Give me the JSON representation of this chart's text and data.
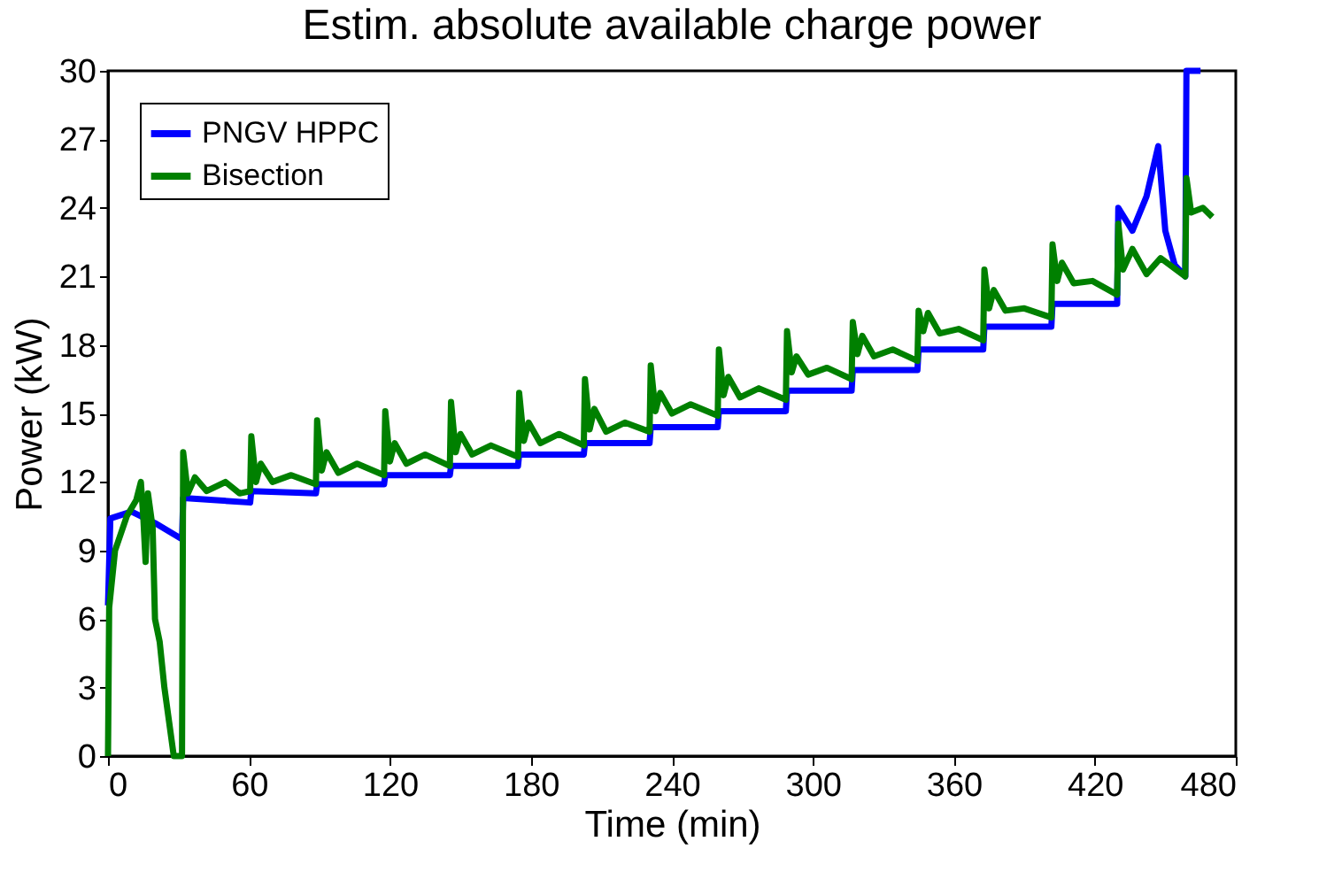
{
  "chart_data": {
    "type": "line",
    "title": "Estim. absolute available charge power",
    "xlabel": "Time (min)",
    "ylabel": "Power (kW)",
    "xlim": [
      0,
      480
    ],
    "xticks": [
      0,
      60,
      120,
      180,
      240,
      300,
      360,
      420,
      480
    ],
    "ylim": [
      0,
      30
    ],
    "yticks": [
      0,
      3,
      6,
      9,
      12,
      15,
      18,
      21,
      24,
      27,
      30
    ],
    "grid": false,
    "legend": "top left",
    "marker": "none",
    "line_style": "solid",
    "series": [
      {
        "name": "PNGV HPPC",
        "color": "#0000ff",
        "x": [
          0,
          1,
          10,
          20,
          31.5,
          32,
          60.5,
          61,
          88.5,
          89,
          117.5,
          118,
          145.5,
          146,
          174.5,
          175,
          202.5,
          203,
          230.5,
          231,
          259.5,
          260,
          288.5,
          289,
          316.5,
          317,
          344.5,
          345,
          372.5,
          373,
          401.5,
          402,
          429.5,
          430,
          436,
          442,
          447,
          450,
          454,
          458.5,
          459,
          465
        ],
        "values": [
          6.6,
          10.4,
          10.7,
          10.2,
          9.5,
          11.3,
          11.1,
          11.6,
          11.5,
          11.9,
          11.9,
          12.3,
          12.3,
          12.7,
          12.7,
          13.2,
          13.2,
          13.7,
          13.7,
          14.4,
          14.4,
          15.1,
          15.1,
          16.0,
          16.0,
          16.9,
          16.9,
          17.8,
          17.8,
          18.8,
          18.8,
          19.8,
          19.8,
          24.0,
          23.0,
          24.5,
          26.7,
          23.0,
          21.5,
          21.0,
          30,
          30
        ]
      },
      {
        "name": "Bisection",
        "color": "#008000",
        "x": [
          0,
          0.5,
          3,
          8,
          12,
          14,
          15,
          16,
          17,
          19,
          20,
          22,
          24,
          26,
          28,
          31.5,
          32,
          34,
          37,
          42,
          50,
          56,
          60.5,
          61,
          63,
          65,
          70,
          78,
          88.5,
          89,
          91,
          93,
          98,
          106,
          117.5,
          118,
          120,
          122,
          127,
          135,
          145.5,
          146,
          148,
          150,
          155,
          163,
          174.5,
          175,
          177,
          179,
          184,
          192,
          202.5,
          203,
          205,
          207,
          212,
          220,
          230.5,
          231,
          233,
          235,
          240,
          248,
          259.5,
          260,
          262,
          264,
          269,
          277,
          288.5,
          289,
          291,
          293,
          298,
          306,
          316.5,
          317,
          319,
          321,
          326,
          334,
          344.5,
          345,
          347,
          349,
          354,
          362,
          372.5,
          373,
          375,
          377,
          382,
          390,
          401.5,
          402,
          404,
          406,
          411,
          419,
          429.5,
          430,
          432,
          436,
          442,
          448,
          458.5,
          459,
          461,
          466,
          470
        ],
        "values": [
          0,
          6.5,
          9,
          10.5,
          11.2,
          12.0,
          10.5,
          8.5,
          11.5,
          10,
          6,
          5,
          3,
          1.5,
          0,
          0,
          13.3,
          11.5,
          12.2,
          11.6,
          12.0,
          11.5,
          11.6,
          14.0,
          12.0,
          12.8,
          12.0,
          12.3,
          11.9,
          14.7,
          12.5,
          13.3,
          12.4,
          12.8,
          12.3,
          15.1,
          12.9,
          13.7,
          12.8,
          13.2,
          12.7,
          15.5,
          13.3,
          14.1,
          13.2,
          13.6,
          13.1,
          15.9,
          13.8,
          14.6,
          13.7,
          14.1,
          13.6,
          16.5,
          14.3,
          15.2,
          14.2,
          14.6,
          14.2,
          17.1,
          15.1,
          15.9,
          15.0,
          15.4,
          14.9,
          17.8,
          15.8,
          16.6,
          15.7,
          16.1,
          15.6,
          18.6,
          16.8,
          17.5,
          16.7,
          17.0,
          16.5,
          19.0,
          17.6,
          18.4,
          17.5,
          17.8,
          17.3,
          19.5,
          18.6,
          19.4,
          18.5,
          18.7,
          18.2,
          21.3,
          19.6,
          20.4,
          19.5,
          19.6,
          19.2,
          22.4,
          20.8,
          21.6,
          20.7,
          20.8,
          20.2,
          23.3,
          21.3,
          22.2,
          21.1,
          21.8,
          21.0,
          25.3,
          23.8,
          24.0,
          23.6
        ]
      }
    ]
  }
}
